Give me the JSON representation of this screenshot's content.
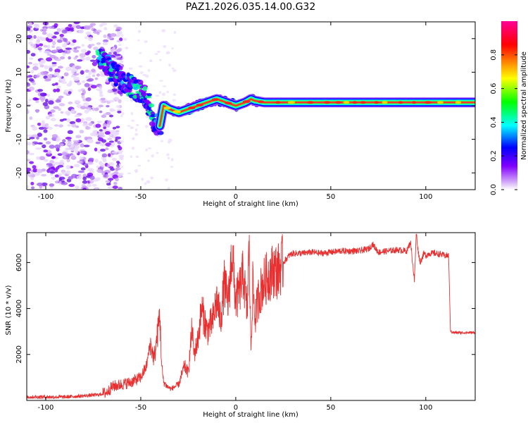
{
  "title": "PAZ1.2026.035.14.00.G32",
  "chart_data": [
    {
      "type": "heatmap",
      "name": "spectrogram",
      "xlabel": "Height of straight line (km)",
      "ylabel": "Frequency (Hz)",
      "xlim": [
        -110,
        126
      ],
      "ylim": [
        -25,
        25
      ],
      "xticks": [
        "-100",
        "-50",
        "0",
        "50",
        "100"
      ],
      "yticks": [
        "-20",
        "-10",
        "0",
        "10",
        "20"
      ],
      "xtick_values": [
        -100,
        -50,
        0,
        50,
        100
      ],
      "ytick_values": [
        -20,
        -10,
        0,
        10,
        20
      ],
      "ridge": {
        "x": [
          -72,
          -68,
          -65,
          -60,
          -55,
          -50,
          -46,
          -44,
          -42,
          -40,
          -38,
          -35,
          -30,
          -25,
          -20,
          -15,
          -10,
          -5,
          0,
          5,
          8,
          10,
          15,
          20,
          40,
          60,
          90,
          100,
          126
        ],
        "y": [
          15,
          12,
          10,
          8,
          6,
          4,
          1,
          -3,
          -5,
          -6,
          0,
          -1,
          -2,
          -1,
          0,
          1,
          2,
          1,
          0,
          1,
          2,
          1.5,
          1,
          1,
          1,
          1,
          1,
          1,
          1
        ]
      },
      "colorbar": {
        "label": "Normalized spectral amplitude",
        "ticks": [
          "0.0",
          "0.2",
          "0.4",
          "0.6",
          "0.8"
        ],
        "tick_values": [
          0.0,
          0.2,
          0.4,
          0.6,
          0.8
        ],
        "range": [
          0,
          1
        ],
        "colors": [
          "#ffffff",
          "#d8b4f8",
          "#8000ff",
          "#0000ff",
          "#00ffff",
          "#00ff00",
          "#ffff00",
          "#ff8000",
          "#ff0000",
          "#ff00a0"
        ]
      }
    },
    {
      "type": "line",
      "name": "snr",
      "xlabel": "Height of straight line (km)",
      "ylabel": "SNR (10 * v/v)",
      "xlim": [
        -110,
        126
      ],
      "ylim": [
        0,
        7300
      ],
      "xticks": [
        "-100",
        "-50",
        "0",
        "50",
        "100"
      ],
      "yticks": [
        "2000",
        "4000",
        "6000"
      ],
      "xtick_values": [
        -100,
        -50,
        0,
        50,
        100
      ],
      "ytick_values": [
        2000,
        4000,
        6000
      ],
      "color": "#e83030",
      "series": [
        {
          "name": "SNR",
          "x": [
            -110,
            -90,
            -80,
            -72,
            -68,
            -65,
            -60,
            -55,
            -50,
            -47,
            -45,
            -43,
            -41,
            -40,
            -39,
            -38,
            -36,
            -34,
            -30,
            -27,
            -25,
            -23,
            -22,
            -20,
            -18,
            -15,
            -12,
            -10,
            -8,
            -6,
            -4,
            -2,
            0,
            2,
            4,
            6,
            7,
            8,
            9,
            10,
            12,
            14,
            16,
            18,
            20,
            22,
            25,
            28,
            30,
            35,
            40,
            45,
            50,
            55,
            60,
            65,
            70,
            72,
            75,
            80,
            85,
            90,
            92,
            94,
            95,
            96,
            97,
            99,
            100,
            102,
            105,
            108,
            110,
            111,
            112,
            113,
            115,
            120,
            126
          ],
          "y": [
            150,
            150,
            200,
            250,
            350,
            600,
            700,
            800,
            1000,
            1500,
            2500,
            1800,
            3000,
            3800,
            1500,
            800,
            600,
            500,
            700,
            1500,
            1200,
            3200,
            2000,
            2600,
            4000,
            3000,
            3500,
            4400,
            3500,
            5100,
            4200,
            6500,
            4300,
            4800,
            5500,
            3800,
            6700,
            2200,
            5200,
            3500,
            4500,
            5000,
            5300,
            5500,
            5700,
            5600,
            6000,
            6300,
            6400,
            6400,
            6450,
            6400,
            6450,
            6500,
            6500,
            6500,
            6600,
            6800,
            6450,
            6500,
            6550,
            6500,
            6900,
            5200,
            7300,
            6500,
            6000,
            6400,
            6300,
            6400,
            6400,
            6350,
            6300,
            6300,
            6300,
            3000,
            2950,
            2950,
            2950
          ]
        }
      ]
    }
  ]
}
